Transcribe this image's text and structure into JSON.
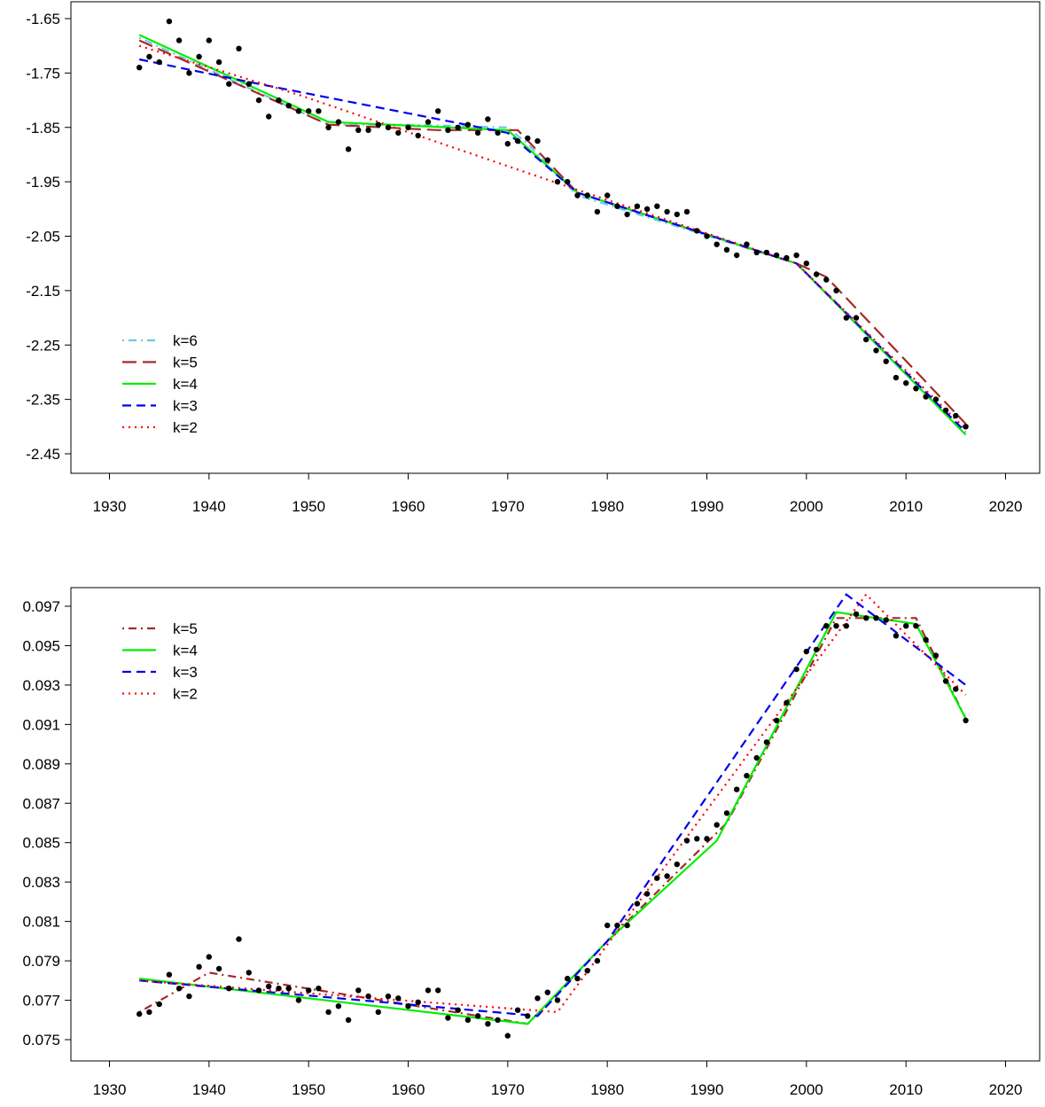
{
  "chart_data": [
    {
      "type": "line",
      "xlim": [
        1930,
        2020
      ],
      "ylim": [
        -2.45,
        -1.65
      ],
      "xticks": [
        1930,
        1940,
        1950,
        1960,
        1970,
        1980,
        1990,
        2000,
        2010,
        2020
      ],
      "yticks": [
        "-1.65",
        "-1.75",
        "-1.85",
        "-1.95",
        "-2.05",
        "-2.15",
        "-2.25",
        "-2.35",
        "-2.45"
      ],
      "legend_position": "bottom-left",
      "points": {
        "x": [
          1933,
          1934,
          1935,
          1936,
          1937,
          1938,
          1939,
          1940,
          1941,
          1942,
          1943,
          1944,
          1945,
          1946,
          1947,
          1948,
          1949,
          1950,
          1951,
          1952,
          1953,
          1954,
          1955,
          1956,
          1957,
          1958,
          1959,
          1960,
          1961,
          1962,
          1963,
          1964,
          1965,
          1966,
          1967,
          1968,
          1969,
          1970,
          1971,
          1972,
          1973,
          1974,
          1975,
          1976,
          1977,
          1978,
          1979,
          1980,
          1981,
          1982,
          1983,
          1984,
          1985,
          1986,
          1987,
          1988,
          1989,
          1990,
          1991,
          1992,
          1993,
          1994,
          1995,
          1996,
          1997,
          1998,
          1999,
          2000,
          2001,
          2002,
          2003,
          2004,
          2005,
          2006,
          2007,
          2008,
          2009,
          2010,
          2011,
          2012,
          2013,
          2014,
          2015,
          2016
        ],
        "y": [
          -1.74,
          -1.72,
          -1.73,
          -1.655,
          -1.69,
          -1.75,
          -1.72,
          -1.69,
          -1.73,
          -1.77,
          -1.705,
          -1.77,
          -1.8,
          -1.83,
          -1.8,
          -1.81,
          -1.82,
          -1.82,
          -1.82,
          -1.85,
          -1.84,
          -1.89,
          -1.855,
          -1.855,
          -1.845,
          -1.85,
          -1.86,
          -1.85,
          -1.865,
          -1.84,
          -1.82,
          -1.855,
          -1.85,
          -1.845,
          -1.86,
          -1.835,
          -1.86,
          -1.88,
          -1.875,
          -1.87,
          -1.875,
          -1.91,
          -1.95,
          -1.95,
          -1.975,
          -1.975,
          -2.005,
          -1.975,
          -1.995,
          -2.01,
          -1.995,
          -2.0,
          -1.995,
          -2.005,
          -2.01,
          -2.005,
          -2.04,
          -2.05,
          -2.065,
          -2.075,
          -2.085,
          -2.065,
          -2.08,
          -2.08,
          -2.085,
          -2.09,
          -2.085,
          -2.1,
          -2.12,
          -2.13,
          -2.15,
          -2.2,
          -2.2,
          -2.24,
          -2.26,
          -2.28,
          -2.31,
          -2.32,
          -2.33,
          -2.345,
          -2.35,
          -2.37,
          -2.38,
          -2.4
        ]
      },
      "series": [
        {
          "name": "k=6",
          "color": "#6EC8E0",
          "dash": "dotdash",
          "x": [
            1933,
            1952,
            1960,
            1970,
            1972,
            1977,
            1999,
            2016
          ],
          "y": [
            -1.685,
            -1.845,
            -1.845,
            -1.85,
            -1.88,
            -1.975,
            -2.1,
            -2.415
          ]
        },
        {
          "name": "k=5",
          "color": "#A52A2A",
          "dash": "longdash",
          "x": [
            1933,
            1952,
            1963,
            1971,
            1977,
            1999,
            2002,
            2016
          ],
          "y": [
            -1.69,
            -1.845,
            -1.855,
            -1.855,
            -1.97,
            -2.1,
            -2.125,
            -2.395
          ]
        },
        {
          "name": "k=4",
          "color": "#00EE00",
          "dash": "solid",
          "x": [
            1933,
            1952,
            1970,
            1977,
            1999,
            2016
          ],
          "y": [
            -1.68,
            -1.84,
            -1.855,
            -1.97,
            -2.1,
            -2.415
          ]
        },
        {
          "name": "k=3",
          "color": "#0000EE",
          "dash": "dash",
          "x": [
            1933,
            1945,
            1970,
            1977,
            1999,
            2016
          ],
          "y": [
            -1.725,
            -1.77,
            -1.86,
            -1.97,
            -2.1,
            -2.41
          ]
        },
        {
          "name": "k=2",
          "color": "#FF0000",
          "dash": "dot",
          "x": [
            1933,
            1949,
            1977,
            1999,
            2016
          ],
          "y": [
            -1.7,
            -1.79,
            -1.965,
            -2.1,
            -2.405
          ]
        }
      ]
    },
    {
      "type": "line",
      "xlim": [
        1930,
        2020
      ],
      "ylim": [
        0.075,
        0.097
      ],
      "xticks": [
        1930,
        1940,
        1950,
        1960,
        1970,
        1980,
        1990,
        2000,
        2010,
        2020
      ],
      "yticks": [
        "0.097",
        "0.095",
        "0.093",
        "0.091",
        "0.089",
        "0.087",
        "0.085",
        "0.083",
        "0.081",
        "0.079",
        "0.077",
        "0.075"
      ],
      "legend_position": "top-left",
      "points": {
        "x": [
          1933,
          1934,
          1935,
          1936,
          1937,
          1938,
          1939,
          1940,
          1941,
          1942,
          1943,
          1944,
          1945,
          1946,
          1947,
          1948,
          1949,
          1950,
          1951,
          1952,
          1953,
          1954,
          1955,
          1956,
          1957,
          1958,
          1959,
          1960,
          1961,
          1962,
          1963,
          1964,
          1965,
          1966,
          1967,
          1968,
          1969,
          1970,
          1971,
          1972,
          1973,
          1974,
          1975,
          1976,
          1977,
          1978,
          1979,
          1980,
          1981,
          1982,
          1983,
          1984,
          1985,
          1986,
          1987,
          1988,
          1989,
          1990,
          1991,
          1992,
          1993,
          1994,
          1995,
          1996,
          1997,
          1998,
          1999,
          2000,
          2001,
          2002,
          2003,
          2004,
          2005,
          2006,
          2007,
          2008,
          2009,
          2010,
          2011,
          2012,
          2013,
          2014,
          2015,
          2016
        ],
        "y": [
          0.0763,
          0.0764,
          0.0768,
          0.0783,
          0.0776,
          0.0772,
          0.0787,
          0.0792,
          0.0786,
          0.0776,
          0.0801,
          0.0784,
          0.0775,
          0.0777,
          0.0776,
          0.0776,
          0.077,
          0.0775,
          0.0776,
          0.0764,
          0.0767,
          0.076,
          0.0775,
          0.0772,
          0.0764,
          0.0772,
          0.0771,
          0.0767,
          0.0769,
          0.0775,
          0.0775,
          0.0761,
          0.0765,
          0.076,
          0.0762,
          0.0758,
          0.076,
          0.0752,
          0.0765,
          0.0762,
          0.0771,
          0.0774,
          0.077,
          0.0781,
          0.0781,
          0.0785,
          0.079,
          0.0808,
          0.0808,
          0.0808,
          0.0819,
          0.0824,
          0.0832,
          0.0833,
          0.0839,
          0.0851,
          0.0852,
          0.0852,
          0.0859,
          0.0865,
          0.0877,
          0.0884,
          0.0893,
          0.0901,
          0.0912,
          0.0921,
          0.0938,
          0.0947,
          0.0948,
          0.096,
          0.096,
          0.096,
          0.0966,
          0.0964,
          0.0964,
          0.0963,
          0.0955,
          0.096,
          0.096,
          0.0953,
          0.0945,
          0.0932,
          0.0928,
          0.0912
        ]
      },
      "series": [
        {
          "name": "k=5",
          "color": "#A52A2A",
          "dash": "dotdash",
          "x": [
            1933,
            1940,
            1972,
            1980,
            1992,
            2003,
            2011,
            2016
          ],
          "y": [
            0.0764,
            0.0784,
            0.0758,
            0.08,
            0.086,
            0.0964,
            0.0964,
            0.0913
          ]
        },
        {
          "name": "k=4",
          "color": "#00EE00",
          "dash": "solid",
          "x": [
            1933,
            1972,
            1980,
            1991,
            2003,
            2011,
            2016
          ],
          "y": [
            0.0781,
            0.0758,
            0.08,
            0.0851,
            0.0967,
            0.0961,
            0.0913
          ]
        },
        {
          "name": "k=3",
          "color": "#0000EE",
          "dash": "dash",
          "x": [
            1933,
            1973,
            1980,
            2004,
            2016
          ],
          "y": [
            0.078,
            0.0762,
            0.08,
            0.0976,
            0.093
          ]
        },
        {
          "name": "k=2",
          "color": "#FF0000",
          "dash": "dot",
          "x": [
            1933,
            1975,
            2006,
            2016
          ],
          "y": [
            0.078,
            0.0764,
            0.0976,
            0.0925
          ]
        }
      ]
    }
  ]
}
